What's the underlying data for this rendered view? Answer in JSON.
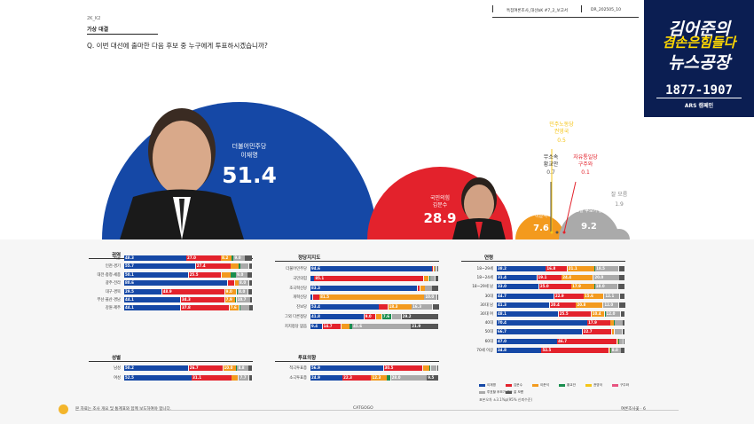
{
  "header": {
    "code": "2K_K2",
    "section": "가상 대결",
    "question": "Q. 이번 대선에 출마한 다음 후보 중 누구에게 투표하시겠습니까?",
    "meta_report": "특집여론조사_대선bK #7_2_보고서",
    "meta_date": "DR_202505_10"
  },
  "logo": {
    "line1": "김어준의",
    "line2": "겸손은힘들다",
    "line3": "뉴스공장",
    "number": "1877-1907",
    "sub": "ARS 캠페인"
  },
  "colors": {
    "blue": "#1548a6",
    "red": "#e3222c",
    "orange": "#f39a1e",
    "green": "#1a8e4f",
    "yellow": "#f5c518",
    "pink": "#e75480",
    "darkgray": "#555555",
    "lightgray": "#aaaaaa",
    "navy": "#0b1e52"
  },
  "chart_data": [
    {
      "type": "bubble",
      "candidates": [
        {
          "party": "더불어민주당",
          "name": "이재명",
          "value": 51.4,
          "color": "blue"
        },
        {
          "party": "국민의힘",
          "name": "김문수",
          "value": 28.9,
          "color": "red"
        },
        {
          "party": "개혁신당",
          "name": "이준석",
          "value": 7.6,
          "color": "orange"
        },
        {
          "party": "무소속",
          "name": "황교안",
          "value": 0.7,
          "color": "darkgray"
        },
        {
          "party": "민주노동당",
          "name": "권영국",
          "value": 0.5,
          "color": "yellow"
        },
        {
          "party": "자유통일당",
          "name": "구주와",
          "value": 0.1,
          "color": "red"
        },
        {
          "party": "투표할 후보가 없다",
          "name": "",
          "value": 9.2,
          "color": "lightgray"
        },
        {
          "party": "잘 모름",
          "name": "",
          "value": 1.9,
          "color": "lightgray"
        }
      ]
    },
    {
      "type": "stacked_bar",
      "title": "권역",
      "rows": [
        {
          "label": "서울",
          "values": [
            48.3,
            27.0,
            8.2,
            1.6,
            0.0,
            0.0,
            9.0,
            5.9
          ]
        },
        {
          "label": "인천·경기",
          "values": [
            55.7,
            27.4,
            5.9,
            1.5,
            0.0,
            0.0,
            6.5,
            3.0
          ]
        },
        {
          "label": "대전·충청·세종",
          "values": [
            50.1,
            25.5,
            7.4,
            4.0,
            0.0,
            0.0,
            9.0,
            4.0
          ]
        },
        {
          "label": "광주·전라",
          "values": [
            80.6,
            5.4,
            3.0,
            0.0,
            0.0,
            0.0,
            8.0,
            3.0
          ]
        },
        {
          "label": "대구·경북",
          "values": [
            29.5,
            48.9,
            9.0,
            1.0,
            0.0,
            0.0,
            8.0,
            3.6
          ]
        },
        {
          "label": "부산·울산·경남",
          "values": [
            44.1,
            34.3,
            7.9,
            1.0,
            0.0,
            0.0,
            10.7,
            2.0
          ]
        },
        {
          "label": "강원·제주",
          "values": [
            44.1,
            37.8,
            7.6,
            1.0,
            0.0,
            0.0,
            7.0,
            2.5
          ]
        }
      ]
    },
    {
      "type": "stacked_bar",
      "title": "성별",
      "rows": [
        {
          "label": "남성",
          "values": [
            50.2,
            26.7,
            10.0,
            1.0,
            0.0,
            0.0,
            8.8,
            3.3
          ]
        },
        {
          "label": "여성",
          "values": [
            52.5,
            31.1,
            5.2,
            0.5,
            0.0,
            0.0,
            7.7,
            3.0
          ]
        }
      ]
    },
    {
      "type": "stacked_bar",
      "title": "정당지지도",
      "rows": [
        {
          "label": "더불어민주당",
          "values": [
            94.6,
            1.0,
            1.0,
            0.0,
            0.0,
            0.0,
            2.0,
            1.4
          ]
        },
        {
          "label": "국민의힘",
          "values": [
            3.0,
            85.1,
            4.0,
            1.0,
            0.0,
            0.0,
            4.0,
            2.9
          ]
        },
        {
          "label": "조국혁신당",
          "values": [
            83.3,
            2.0,
            4.0,
            0.0,
            0.0,
            0.0,
            5.5,
            5.2
          ]
        },
        {
          "label": "개혁신당",
          "values": [
            2.0,
            5.0,
            81.5,
            0.0,
            0.0,
            0.0,
            10.0,
            1.5
          ]
        },
        {
          "label": "진보당",
          "values": [
            53.4,
            7.0,
            18.3,
            0.0,
            0.0,
            0.0,
            16.3,
            5.0
          ]
        },
        {
          "label": "그외 다른정당",
          "values": [
            41.8,
            9.0,
            5.0,
            7.6,
            0.0,
            0.0,
            7.4,
            29.2
          ]
        },
        {
          "label": "지지정당 없음",
          "values": [
            9.4,
            14.7,
            6.4,
            2.0,
            0.0,
            0.0,
            45.6,
            21.9
          ]
        }
      ]
    },
    {
      "type": "stacked_bar",
      "title": "투표의향",
      "rows": [
        {
          "label": "적극투표층",
          "values": [
            56.9,
            30.5,
            5.1,
            1.0,
            0.0,
            0.0,
            5.0,
            1.5
          ]
        },
        {
          "label": "소극투표층",
          "values": [
            24.9,
            22.3,
            12.3,
            3.0,
            0.0,
            0.0,
            28.0,
            9.5
          ]
        }
      ]
    },
    {
      "type": "stacked_bar",
      "title": "연령",
      "rows": [
        {
          "label": "18~29세",
          "values": [
            38.2,
            16.8,
            21.1,
            0.5,
            0.0,
            0.0,
            18.5,
            4.9
          ]
        },
        {
          "label": "18~24세",
          "values": [
            31.4,
            19.1,
            24.4,
            0.5,
            0.0,
            0.0,
            20.0,
            4.6
          ]
        },
        {
          "label": "18~29세 남",
          "values": [
            33.0,
            25.0,
            17.9,
            0.5,
            0.0,
            0.0,
            18.0,
            5.6
          ]
        },
        {
          "label": "30대",
          "values": [
            44.7,
            22.9,
            15.6,
            0.5,
            0.0,
            0.0,
            12.1,
            4.2
          ]
        },
        {
          "label": "30대 남",
          "values": [
            41.3,
            20.4,
            20.8,
            0.5,
            0.0,
            0.0,
            12.0,
            5.0
          ]
        },
        {
          "label": "30대 여",
          "values": [
            48.1,
            25.5,
            10.4,
            0.5,
            0.0,
            0.0,
            12.0,
            3.5
          ]
        },
        {
          "label": "40대",
          "values": [
            70.4,
            17.9,
            3.0,
            0.5,
            0.0,
            0.0,
            6.2,
            2.0
          ]
        },
        {
          "label": "50대",
          "values": [
            66.7,
            22.7,
            2.0,
            0.5,
            0.0,
            0.0,
            6.0,
            2.1
          ]
        },
        {
          "label": "60대",
          "values": [
            47.0,
            46.7,
            1.0,
            0.5,
            0.0,
            0.0,
            3.3,
            1.5
          ]
        },
        {
          "label": "70세 이상",
          "values": [
            34.8,
            52.5,
            1.0,
            0.5,
            0.0,
            0.0,
            8.0,
            3.2
          ]
        }
      ]
    }
  ],
  "segment_colors": [
    "blue",
    "red",
    "orange",
    "green",
    "yellow",
    "pink",
    "lightgray",
    "darkgray"
  ],
  "legend": [
    "이재명",
    "김문수",
    "이준석",
    "황교안",
    "권영국",
    "구주와",
    "투표할 후보가 없다",
    "잘 모름"
  ],
  "footer": {
    "left_note": "본 자료는 조사 개요 및 통계표와 함께 보도하여야 합니다.",
    "center": "CATGOGO",
    "right": "여론조사꽃 · 6",
    "source_note": "표본오차 ±3.1%p(95% 신뢰수준)"
  }
}
